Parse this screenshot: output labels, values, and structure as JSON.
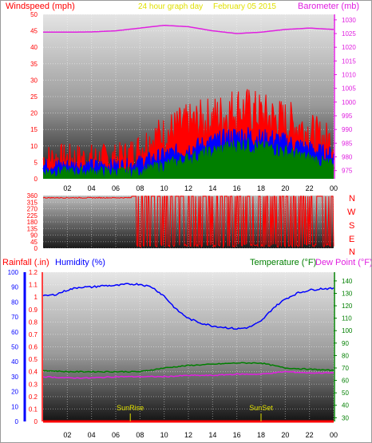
{
  "header": {
    "left_label": "Windspeed (mph)",
    "center_label": "24 hour graph day",
    "date_label": "February 05 2015",
    "right_label": "Barometer (mb)"
  },
  "direction_letters": [
    "N",
    "W",
    "S",
    "E",
    "N"
  ],
  "bottom_header": {
    "rainfall_label": "Rainfall (.in)",
    "humidity_label": "Humidity (%)",
    "temperature_label": "Temperature (°F)",
    "dewpoint_label": "Dew Point (°F)"
  },
  "colors": {
    "windspeed": "#ff0000",
    "wind_avg": "#0000ff",
    "wind_low": "#007f00",
    "barometer": "#e020e0",
    "title_yellow": "#e0e000",
    "rainfall": "#ff0000",
    "humidity": "#0000ff",
    "temperature": "#007f00",
    "dewpoint": "#e020e0",
    "sun": "#e0e000"
  },
  "chart_data": [
    {
      "type": "line",
      "title": "24 hour graph day",
      "date": "February 05 2015",
      "x_ticks": [
        "02",
        "04",
        "06",
        "08",
        "10",
        "12",
        "14",
        "16",
        "18",
        "20",
        "22",
        "00"
      ],
      "y_left": {
        "label": "Windspeed (mph)",
        "ticks": [
          0,
          5,
          10,
          15,
          20,
          25,
          30,
          35,
          40,
          45,
          50
        ],
        "ylim": [
          0,
          50
        ]
      },
      "y_right": {
        "label": "Barometer (mb)",
        "ticks": [
          975,
          980,
          985,
          990,
          995,
          1000,
          1005,
          1010,
          1015,
          1020,
          1025,
          1030
        ],
        "ylim": [
          972,
          1032
        ]
      },
      "series": [
        {
          "name": "Windspeed (mph)",
          "axis": "left",
          "color": "#ff0000",
          "hours": [
            0,
            2,
            4,
            6,
            7,
            8,
            9,
            10,
            11,
            12,
            13,
            14,
            15,
            16,
            17,
            18,
            19,
            20,
            21,
            22,
            23,
            24
          ],
          "values": [
            6,
            6,
            6,
            6,
            7,
            9,
            12,
            13,
            15,
            16,
            17,
            18,
            19,
            21,
            20,
            19,
            18,
            17,
            16,
            14,
            12,
            11
          ]
        },
        {
          "name": "Wind average",
          "axis": "left",
          "color": "#0000ff",
          "hours": [
            0,
            2,
            4,
            6,
            7,
            8,
            9,
            10,
            11,
            12,
            13,
            14,
            15,
            16,
            17,
            18,
            19,
            20,
            21,
            22,
            23,
            24
          ],
          "values": [
            4,
            4,
            4,
            4,
            4,
            5,
            6,
            7,
            8,
            9,
            10,
            11,
            12,
            13,
            13,
            12,
            12,
            11,
            10,
            9,
            8,
            7
          ]
        },
        {
          "name": "Wind low",
          "axis": "left",
          "color": "#007f00",
          "hours": [
            0,
            2,
            4,
            6,
            7,
            8,
            9,
            10,
            11,
            12,
            13,
            14,
            15,
            16,
            17,
            18,
            19,
            20,
            21,
            22,
            23,
            24
          ],
          "values": [
            2,
            2,
            2,
            2,
            2,
            2,
            3,
            4,
            5,
            6,
            7,
            8,
            9,
            10,
            10,
            9,
            9,
            8,
            7,
            6,
            5,
            4
          ]
        },
        {
          "name": "Barometer (mb)",
          "axis": "right",
          "color": "#e020e0",
          "hours": [
            0,
            2,
            4,
            6,
            8,
            10,
            12,
            14,
            16,
            18,
            20,
            22,
            24
          ],
          "values": [
            1025.5,
            1025.5,
            1025.6,
            1026,
            1027,
            1028,
            1027.5,
            1026,
            1025,
            1025.5,
            1026.5,
            1027,
            1026.5
          ]
        }
      ]
    },
    {
      "type": "line",
      "title": "Wind direction",
      "x_ticks": [
        "02",
        "04",
        "06",
        "08",
        "10",
        "12",
        "14",
        "16",
        "18",
        "20",
        "22",
        "00"
      ],
      "y": {
        "ticks": [
          0,
          45,
          90,
          135,
          180,
          225,
          270,
          315,
          360
        ],
        "ylim": [
          0,
          360
        ]
      },
      "series": [
        {
          "name": "Wind direction",
          "color": "#ff0000",
          "steady_until_hour": 7.3,
          "steady_value": 345
        }
      ]
    },
    {
      "type": "line",
      "x_ticks": [
        "02",
        "04",
        "06",
        "08",
        "10",
        "12",
        "14",
        "16",
        "18",
        "20",
        "22",
        "00"
      ],
      "y_rain": {
        "label": "Rainfall (.in)",
        "ticks": [
          0,
          0.1,
          0.2,
          0.3,
          0.4,
          0.5,
          0.6,
          0.7,
          0.8,
          0.9,
          1,
          1.1,
          1.2
        ],
        "ylim": [
          0,
          1.2
        ]
      },
      "y_humidity": {
        "label": "Humidity (%)",
        "ticks": [
          0,
          10,
          20,
          30,
          40,
          50,
          60,
          70,
          80,
          90,
          100
        ],
        "ylim": [
          0,
          100
        ]
      },
      "y_temp": {
        "label": "Temperature (°F)",
        "ticks": [
          30,
          40,
          50,
          60,
          70,
          80,
          90,
          100,
          110,
          120,
          130,
          140
        ],
        "ylim": [
          27,
          147
        ]
      },
      "annotations": [
        {
          "text": "SunRise",
          "hour": 7.2
        },
        {
          "text": "SunSet",
          "hour": 18.0
        }
      ],
      "series": [
        {
          "name": "Humidity (%)",
          "axis": "humidity",
          "color": "#0000ff",
          "hours": [
            0,
            1,
            2,
            3,
            4,
            5,
            6,
            7,
            8,
            9,
            10,
            11,
            12,
            13,
            14,
            15,
            16,
            17,
            18,
            19,
            20,
            21,
            22,
            23,
            24
          ],
          "values": [
            84,
            85,
            88,
            90,
            90,
            91,
            91,
            92,
            92,
            90,
            84,
            75,
            69,
            66,
            64,
            63,
            62,
            63,
            67,
            76,
            82,
            86,
            88,
            89,
            89
          ]
        },
        {
          "name": "Temperature (°F)",
          "axis": "temp",
          "color": "#007f00",
          "hours": [
            0,
            2,
            4,
            6,
            8,
            10,
            12,
            14,
            16,
            18,
            20,
            22,
            24
          ],
          "values": [
            68,
            67,
            67,
            67,
            67,
            70,
            72,
            73,
            74,
            74,
            70,
            69,
            68
          ]
        },
        {
          "name": "Dew Point (°F)",
          "axis": "temp",
          "color": "#e020e0",
          "hours": [
            0,
            2,
            4,
            6,
            8,
            10,
            12,
            14,
            16,
            18,
            20,
            22,
            24
          ],
          "values": [
            63,
            62,
            62,
            63,
            63,
            63,
            64,
            64,
            65,
            65,
            67,
            66,
            66
          ]
        },
        {
          "name": "Rainfall (.in)",
          "axis": "rain",
          "color": "#ff0000",
          "hours": [
            0,
            24
          ],
          "values": [
            0,
            0
          ]
        }
      ]
    }
  ]
}
